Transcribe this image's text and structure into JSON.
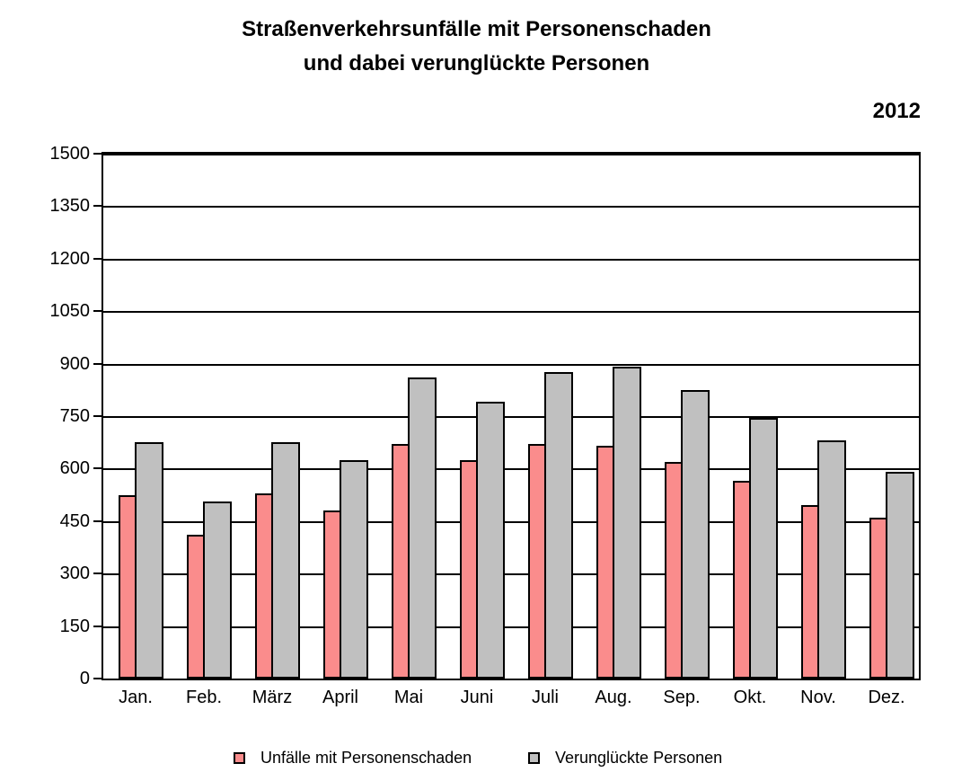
{
  "title": {
    "line1": "Straßenverkehrsunfälle mit Personenschaden",
    "line2": "und dabei verunglückte Personen"
  },
  "year_label": "2012",
  "chart_data": {
    "type": "bar",
    "title": "Straßenverkehrsunfälle mit Personenschaden und dabei verunglückte Personen",
    "subtitle": "2012",
    "categories": [
      "Jan.",
      "Feb.",
      "März",
      "April",
      "Mai",
      "Juni",
      "Juli",
      "Aug.",
      "Sep.",
      "Okt.",
      "Nov.",
      "Dez."
    ],
    "series": [
      {
        "name": "Unfälle mit Personenschaden",
        "color": "#FA8C8C",
        "values": [
          520,
          405,
          525,
          475,
          665,
          620,
          665,
          660,
          615,
          560,
          490,
          455
        ]
      },
      {
        "name": "Verunglückte Personen",
        "color": "#C0C0C0",
        "values": [
          670,
          500,
          670,
          620,
          855,
          785,
          870,
          885,
          820,
          740,
          675,
          585
        ]
      }
    ],
    "xlabel": "",
    "ylabel": "",
    "ylim": [
      0,
      1500
    ],
    "ytick_step": 150,
    "yticks": [
      0,
      150,
      300,
      450,
      600,
      750,
      900,
      1050,
      1200,
      1350,
      1500
    ],
    "grid": true,
    "gridline_color": "#000000",
    "bar_border_color": "#000000",
    "legend_position": "bottom"
  },
  "legend": {
    "items": [
      {
        "label": "Unfälle mit Personenschaden",
        "color": "#FA8C8C"
      },
      {
        "label": "Verunglückte Personen",
        "color": "#C0C0C0"
      }
    ]
  }
}
